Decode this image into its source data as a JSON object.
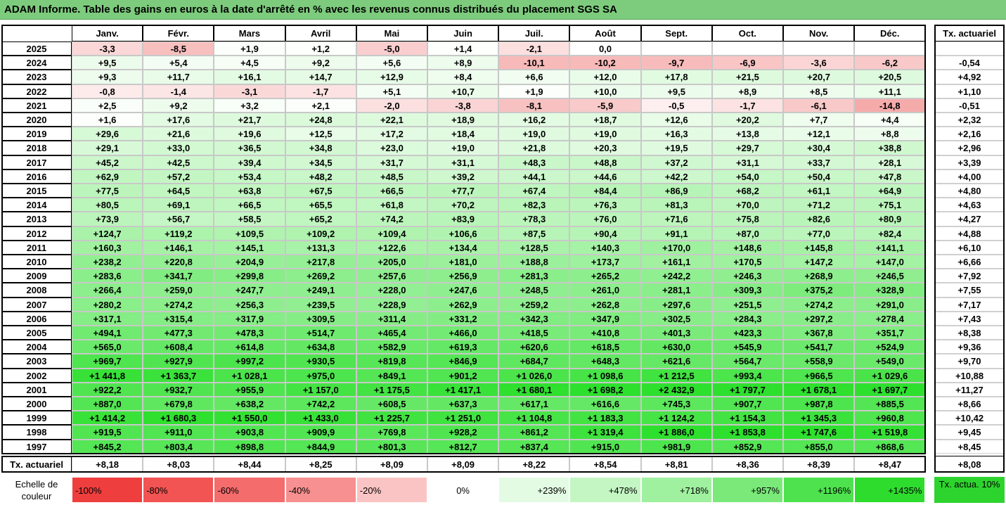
{
  "title": "ADAM Informe. Table des gains en euros à la date d'arrêté en % avec les revenus connus distribués du placement SGS SA",
  "chart_data": {
    "type": "heatmap",
    "title": "ADAM Informe. Table des gains en euros à la date d'arrêté en % avec les revenus connus distribués du placement SGS SA",
    "months": [
      "Janv.",
      "Févr.",
      "Mars",
      "Avril",
      "Mai",
      "Juin",
      "Juil.",
      "Août",
      "Sept.",
      "Oct.",
      "Nov.",
      "Déc."
    ],
    "rate_header": "Tx. actuariel",
    "rows": [
      {
        "year": "2025",
        "cells": [
          "-3,3",
          "-8,5",
          "+1,9",
          "+1,2",
          "-5,0",
          "+1,4",
          "-2,1",
          "0,0",
          "",
          "",
          "",
          ""
        ],
        "rate": ""
      },
      {
        "year": "2024",
        "cells": [
          "+9,5",
          "+5,4",
          "+4,5",
          "+9,2",
          "+5,6",
          "+8,9",
          "-10,1",
          "-10,2",
          "-9,7",
          "-6,9",
          "-3,6",
          "-6,2"
        ],
        "rate": "-0,54"
      },
      {
        "year": "2023",
        "cells": [
          "+9,3",
          "+11,7",
          "+16,1",
          "+14,7",
          "+12,9",
          "+8,4",
          "+6,6",
          "+12,0",
          "+17,8",
          "+21,5",
          "+20,7",
          "+20,5"
        ],
        "rate": "+4,92"
      },
      {
        "year": "2022",
        "cells": [
          "-0,8",
          "-1,4",
          "-3,1",
          "-1,7",
          "+5,1",
          "+10,7",
          "+1,9",
          "+10,0",
          "+9,5",
          "+8,9",
          "+8,5",
          "+11,1"
        ],
        "rate": "+1,10"
      },
      {
        "year": "2021",
        "cells": [
          "+2,5",
          "+9,2",
          "+3,2",
          "+2,1",
          "-2,0",
          "-3,8",
          "-8,1",
          "-5,9",
          "-0,5",
          "-1,7",
          "-6,1",
          "-14,8"
        ],
        "rate": "-0,51"
      },
      {
        "year": "2020",
        "cells": [
          "+1,6",
          "+17,6",
          "+21,7",
          "+24,8",
          "+22,1",
          "+18,9",
          "+16,2",
          "+18,7",
          "+12,6",
          "+20,2",
          "+7,7",
          "+4,4"
        ],
        "rate": "+2,32"
      },
      {
        "year": "2019",
        "cells": [
          "+29,6",
          "+21,6",
          "+19,6",
          "+12,5",
          "+17,2",
          "+18,4",
          "+19,0",
          "+19,0",
          "+16,3",
          "+13,8",
          "+12,1",
          "+8,8"
        ],
        "rate": "+2,16"
      },
      {
        "year": "2018",
        "cells": [
          "+29,1",
          "+33,0",
          "+36,5",
          "+34,8",
          "+23,0",
          "+19,0",
          "+21,8",
          "+20,3",
          "+19,5",
          "+29,7",
          "+30,4",
          "+38,8"
        ],
        "rate": "+2,96"
      },
      {
        "year": "2017",
        "cells": [
          "+45,2",
          "+42,5",
          "+39,4",
          "+34,5",
          "+31,7",
          "+31,1",
          "+48,3",
          "+48,8",
          "+37,2",
          "+31,1",
          "+33,7",
          "+28,1"
        ],
        "rate": "+3,39"
      },
      {
        "year": "2016",
        "cells": [
          "+62,9",
          "+57,2",
          "+53,4",
          "+48,2",
          "+48,5",
          "+39,2",
          "+44,1",
          "+44,6",
          "+42,2",
          "+54,0",
          "+50,4",
          "+47,8"
        ],
        "rate": "+4,00"
      },
      {
        "year": "2015",
        "cells": [
          "+77,5",
          "+64,5",
          "+63,8",
          "+67,5",
          "+66,5",
          "+77,7",
          "+67,4",
          "+84,4",
          "+86,9",
          "+68,2",
          "+61,1",
          "+64,9"
        ],
        "rate": "+4,80"
      },
      {
        "year": "2014",
        "cells": [
          "+80,5",
          "+69,1",
          "+66,5",
          "+65,5",
          "+61,8",
          "+70,2",
          "+82,3",
          "+76,3",
          "+81,3",
          "+70,0",
          "+71,2",
          "+75,1"
        ],
        "rate": "+4,63"
      },
      {
        "year": "2013",
        "cells": [
          "+73,9",
          "+56,7",
          "+58,5",
          "+65,2",
          "+74,2",
          "+83,9",
          "+78,3",
          "+76,0",
          "+71,6",
          "+75,8",
          "+82,6",
          "+80,9"
        ],
        "rate": "+4,27"
      },
      {
        "year": "2012",
        "cells": [
          "+124,7",
          "+119,2",
          "+109,5",
          "+109,2",
          "+109,4",
          "+106,6",
          "+87,5",
          "+90,4",
          "+91,1",
          "+87,0",
          "+77,0",
          "+82,4"
        ],
        "rate": "+4,88"
      },
      {
        "year": "2011",
        "cells": [
          "+160,3",
          "+146,1",
          "+145,1",
          "+131,3",
          "+122,6",
          "+134,4",
          "+128,5",
          "+140,3",
          "+170,0",
          "+148,6",
          "+145,8",
          "+141,1"
        ],
        "rate": "+6,10"
      },
      {
        "year": "2010",
        "cells": [
          "+238,2",
          "+220,8",
          "+204,9",
          "+217,8",
          "+205,0",
          "+181,0",
          "+188,8",
          "+173,7",
          "+161,1",
          "+170,5",
          "+147,2",
          "+147,0"
        ],
        "rate": "+6,66"
      },
      {
        "year": "2009",
        "cells": [
          "+283,6",
          "+341,7",
          "+299,8",
          "+269,2",
          "+257,6",
          "+256,9",
          "+281,3",
          "+265,2",
          "+242,2",
          "+246,3",
          "+268,9",
          "+246,5"
        ],
        "rate": "+7,92"
      },
      {
        "year": "2008",
        "cells": [
          "+266,4",
          "+259,0",
          "+247,7",
          "+249,1",
          "+228,0",
          "+247,6",
          "+248,5",
          "+261,0",
          "+281,1",
          "+309,3",
          "+375,2",
          "+328,9"
        ],
        "rate": "+7,55"
      },
      {
        "year": "2007",
        "cells": [
          "+280,2",
          "+274,2",
          "+256,3",
          "+239,5",
          "+228,9",
          "+262,9",
          "+259,2",
          "+262,8",
          "+297,6",
          "+251,5",
          "+274,2",
          "+291,0"
        ],
        "rate": "+7,17"
      },
      {
        "year": "2006",
        "cells": [
          "+317,1",
          "+315,4",
          "+317,9",
          "+309,5",
          "+311,4",
          "+331,2",
          "+342,3",
          "+347,9",
          "+302,5",
          "+284,3",
          "+297,2",
          "+278,4"
        ],
        "rate": "+7,43"
      },
      {
        "year": "2005",
        "cells": [
          "+494,1",
          "+477,3",
          "+478,3",
          "+514,7",
          "+465,4",
          "+466,0",
          "+418,5",
          "+410,8",
          "+401,3",
          "+423,3",
          "+367,8",
          "+351,7"
        ],
        "rate": "+8,38"
      },
      {
        "year": "2004",
        "cells": [
          "+565,0",
          "+608,4",
          "+614,8",
          "+634,8",
          "+582,9",
          "+619,3",
          "+620,6",
          "+618,5",
          "+630,0",
          "+545,9",
          "+541,7",
          "+524,9"
        ],
        "rate": "+9,36"
      },
      {
        "year": "2003",
        "cells": [
          "+969,7",
          "+927,9",
          "+997,2",
          "+930,5",
          "+819,8",
          "+846,9",
          "+684,7",
          "+648,3",
          "+621,6",
          "+564,7",
          "+558,9",
          "+549,0"
        ],
        "rate": "+9,70"
      },
      {
        "year": "2002",
        "cells": [
          "+1 441,8",
          "+1 363,7",
          "+1 028,1",
          "+975,0",
          "+849,1",
          "+901,2",
          "+1 026,0",
          "+1 098,6",
          "+1 212,5",
          "+993,4",
          "+966,5",
          "+1 029,6"
        ],
        "rate": "+10,88"
      },
      {
        "year": "2001",
        "cells": [
          "+922,2",
          "+932,7",
          "+955,9",
          "+1 157,0",
          "+1 175,5",
          "+1 417,1",
          "+1 680,1",
          "+1 698,2",
          "+2 432,9",
          "+1 797,7",
          "+1 678,1",
          "+1 697,7"
        ],
        "rate": "+11,27"
      },
      {
        "year": "2000",
        "cells": [
          "+887,0",
          "+679,8",
          "+638,2",
          "+742,2",
          "+608,5",
          "+637,3",
          "+617,1",
          "+616,6",
          "+745,3",
          "+907,7",
          "+987,8",
          "+885,5"
        ],
        "rate": "+8,66"
      },
      {
        "year": "1999",
        "cells": [
          "+1 414,2",
          "+1 680,3",
          "+1 550,0",
          "+1 433,0",
          "+1 225,7",
          "+1 251,0",
          "+1 104,8",
          "+1 183,3",
          "+1 124,2",
          "+1 154,3",
          "+1 345,3",
          "+960,8"
        ],
        "rate": "+10,42"
      },
      {
        "year": "1998",
        "cells": [
          "+919,5",
          "+911,0",
          "+903,8",
          "+909,9",
          "+769,8",
          "+928,2",
          "+861,2",
          "+1 319,4",
          "+1 886,0",
          "+1 853,8",
          "+1 747,6",
          "+1 519,8"
        ],
        "rate": "+9,45"
      },
      {
        "year": "1997",
        "cells": [
          "+845,2",
          "+803,4",
          "+898,8",
          "+844,9",
          "+801,3",
          "+812,7",
          "+837,4",
          "+915,0",
          "+981,9",
          "+852,9",
          "+855,0",
          "+868,6"
        ],
        "rate": "+8,45"
      }
    ],
    "summary_label": "Tx. actuariel",
    "summary": [
      "+8,18",
      "+8,03",
      "+8,44",
      "+8,25",
      "+8,09",
      "+8,09",
      "+8,22",
      "+8,54",
      "+8,81",
      "+8,36",
      "+8,39",
      "+8,47"
    ],
    "summary_rate": "+8,08",
    "legend_label": "Echelle de couleur",
    "legend": [
      "-100%",
      "-80%",
      "-60%",
      "-40%",
      "-20%",
      "0%",
      "+239%",
      "+478%",
      "+718%",
      "+957%",
      "+1196%",
      "+1435%"
    ],
    "legend_colors": [
      "#ef3e3e",
      "#f25353",
      "#f46c6c",
      "#f79090",
      "#fbc4c4",
      "#ffffff",
      "#e3fbe3",
      "#c4f6c4",
      "#9ff09f",
      "#7ae97a",
      "#4fe24f",
      "#2edc2e"
    ],
    "rate_legend": "Tx. actua. 10%",
    "rate_legend_color": "#2ed42e"
  }
}
